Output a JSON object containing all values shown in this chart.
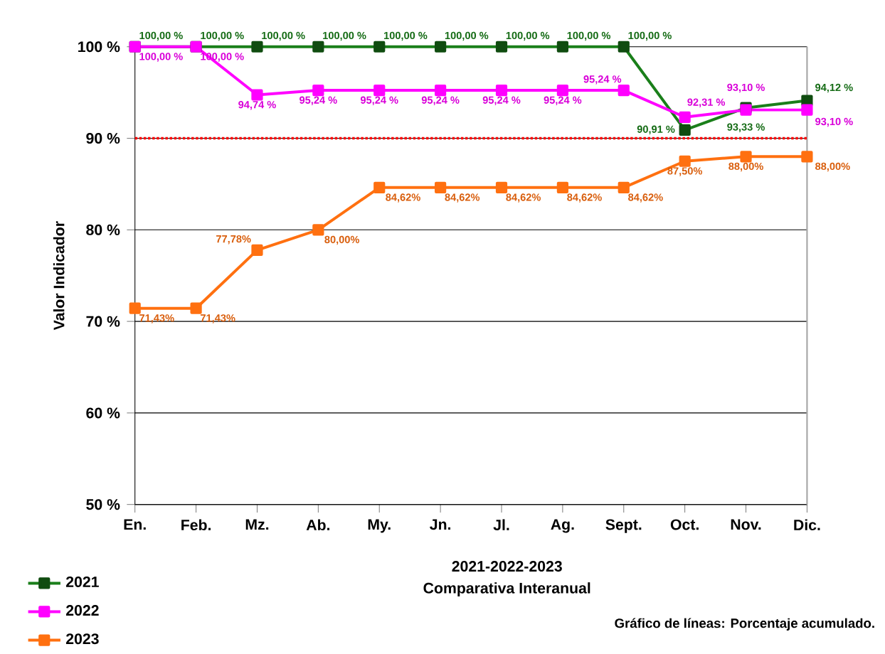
{
  "chart_data": {
    "type": "line",
    "title": "2021-2022-2023",
    "subtitle": "Comparativa Interanual",
    "ylabel": "Valor Indicador",
    "annotations": [
      "Gráfico de líneas: Porcentaje acumulado."
    ],
    "categories": [
      "En.",
      "Feb.",
      "Mz.",
      "Ab.",
      "My.",
      "Jn.",
      "Jl.",
      "Ag.",
      "Sept.",
      "Oct.",
      "Nov.",
      "Dic."
    ],
    "ylim": [
      50,
      100
    ],
    "yticks": [
      {
        "value": 50,
        "label": "50 %"
      },
      {
        "value": 60,
        "label": "60 %"
      },
      {
        "value": 70,
        "label": "70 %"
      },
      {
        "value": 80,
        "label": "80 %"
      },
      {
        "value": 90,
        "label": "90 %"
      },
      {
        "value": 100,
        "label": "100 %"
      }
    ],
    "grid": "y",
    "legend": "bottom left",
    "marker": "square",
    "line_style": "solid",
    "ref_lines": [
      {
        "axis": "y",
        "value": 90,
        "color": "#ff0000",
        "line_style": "dotted"
      }
    ],
    "series": [
      {
        "name": "2021",
        "color": "#1a7f1a",
        "values": [
          100,
          100,
          100,
          100,
          100,
          100,
          100,
          100,
          100,
          90.91,
          93.33,
          94.12
        ],
        "value_labels": [
          "100,00 %",
          "100,00 %",
          "100,00 %",
          "100,00 %",
          "100,00 %",
          "100,00 %",
          "100,00 %",
          "100,00 %",
          "100,00 %",
          "90,91 %",
          "93,33 %",
          "94,12 %"
        ]
      },
      {
        "name": "2022",
        "color": "#ff00ff",
        "values": [
          100,
          100,
          94.74,
          95.24,
          95.24,
          95.24,
          95.24,
          95.24,
          95.24,
          92.31,
          93.1,
          93.1
        ],
        "value_labels": [
          "100,00 %",
          "100,00 %",
          "94,74 %",
          "95,24 %",
          "95,24 %",
          "95,24 %",
          "95,24 %",
          "95,24 %",
          "95,24 %",
          "92,31 %",
          "93,10 %",
          "93,10 %"
        ]
      },
      {
        "name": "2023",
        "color": "#ff7010",
        "values": [
          71.43,
          71.43,
          77.78,
          80.0,
          84.62,
          84.62,
          84.62,
          84.62,
          84.62,
          87.5,
          88.0,
          88.0
        ],
        "value_labels": [
          "71,43%",
          "71,43%",
          "77,78%",
          "80,00%",
          "84,62%",
          "84,62%",
          "84,62%",
          "84,62%",
          "84,62%",
          "87,50%",
          "88,00%",
          "88,00%"
        ]
      }
    ]
  }
}
